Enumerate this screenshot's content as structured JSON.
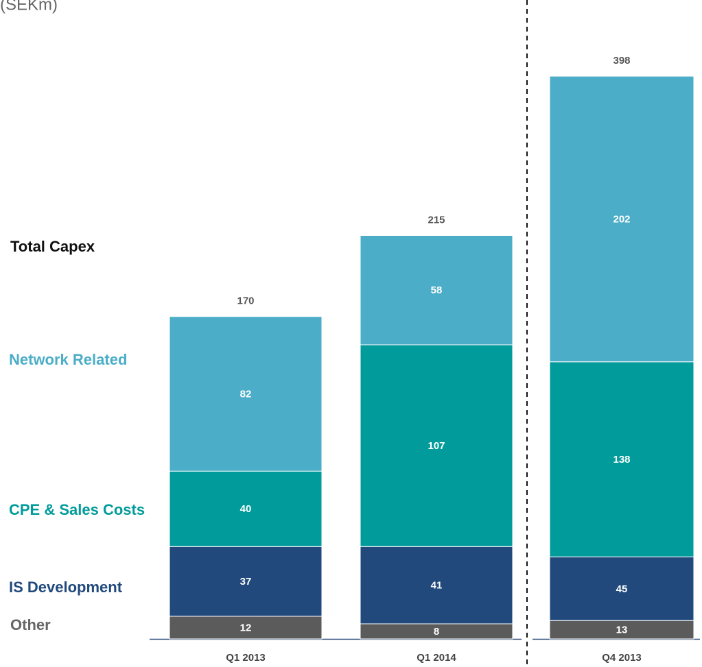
{
  "unit_label": "(SEKm)",
  "total_label": "Total Capex",
  "chart_data": [
    {
      "type": "stacked-bar",
      "categories": [
        "Q1 2013",
        "Q1 2014"
      ],
      "ylim": [
        0,
        300
      ],
      "series": [
        {
          "name": "Other",
          "color": "#5b5b5b",
          "values": [
            12,
            8
          ]
        },
        {
          "name": "IS Development",
          "color": "#21497c",
          "values": [
            37,
            41
          ]
        },
        {
          "name": "CPE & Sales Costs",
          "color": "#009b9a",
          "values": [
            40,
            107
          ]
        },
        {
          "name": "Network Related",
          "color": "#4badc7",
          "values": [
            82,
            58
          ]
        }
      ],
      "totals": [
        170,
        215
      ]
    },
    {
      "type": "stacked-bar",
      "categories": [
        "Q4 2013"
      ],
      "ylim": [
        0,
        400
      ],
      "series": [
        {
          "color": "#5b5b5b",
          "values": [
            13
          ]
        },
        {
          "color": "#21497c",
          "values": [
            45
          ]
        },
        {
          "color": "#009b9a",
          "values": [
            138
          ]
        },
        {
          "color": "#4badc7",
          "values": [
            202
          ]
        }
      ],
      "totals": [
        398
      ]
    }
  ]
}
